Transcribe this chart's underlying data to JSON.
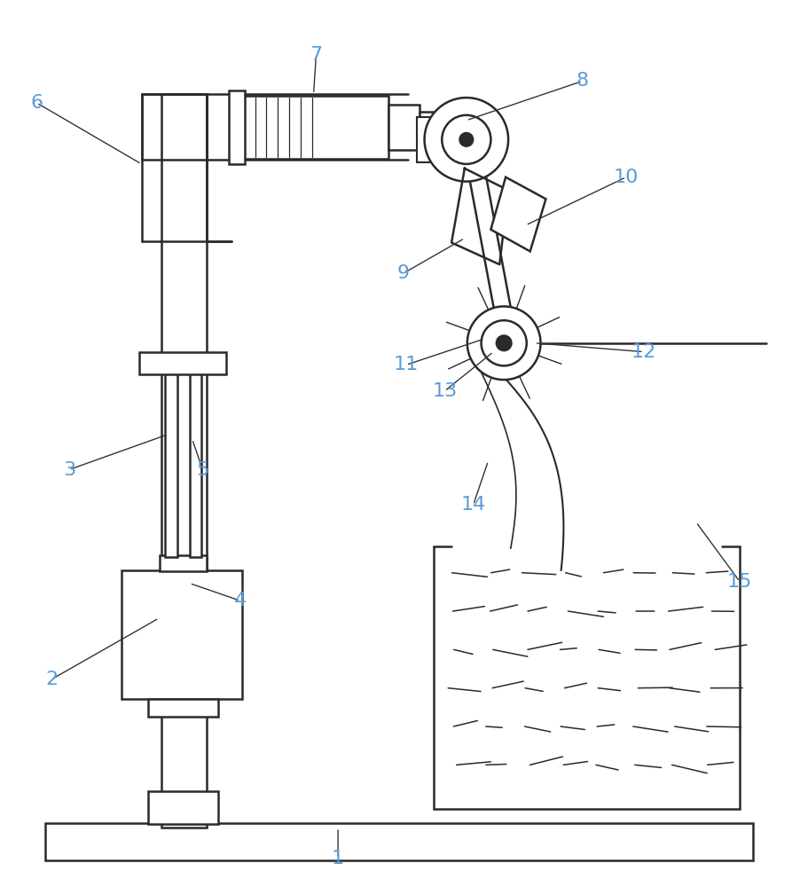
{
  "bg_color": "#ffffff",
  "line_color": "#2a2a2a",
  "label_color": "#5b9bd5",
  "label_color_num": "#c8a020",
  "figsize": [
    9.02,
    10.0
  ],
  "dpi": 100
}
